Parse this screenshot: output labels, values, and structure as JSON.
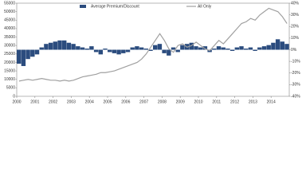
{
  "chart_data": {
    "type": "bar-line",
    "x": [
      2000,
      2000.25,
      2000.5,
      2000.75,
      2001,
      2001.25,
      2001.5,
      2001.75,
      2002,
      2002.25,
      2002.5,
      2002.75,
      2003,
      2003.25,
      2003.5,
      2003.75,
      2004,
      2004.25,
      2004.5,
      2004.75,
      2005,
      2005.25,
      2005.5,
      2005.75,
      2006,
      2006.25,
      2006.5,
      2006.75,
      2007,
      2007.25,
      2007.5,
      2007.75,
      2008,
      2008.25,
      2008.5,
      2008.75,
      2009,
      2009.25,
      2009.5,
      2009.75,
      2010,
      2010.25,
      2010.5,
      2010.75,
      2011,
      2011.25,
      2011.5,
      2011.75,
      2012,
      2012.25,
      2012.5,
      2012.75,
      2013,
      2013.25,
      2013.5,
      2013.75,
      2014,
      2014.25,
      2014.5,
      2014.75
    ],
    "xlim": [
      2000,
      2015
    ],
    "xticks": [
      2000,
      2001,
      2002,
      2003,
      2004,
      2005,
      2006,
      2007,
      2008,
      2009,
      2010,
      2011,
      2012,
      2013,
      2014
    ],
    "ylim": [
      0,
      55000
    ],
    "yticks": [
      0,
      5000,
      10000,
      15000,
      20000,
      25000,
      30000,
      35000,
      40000,
      45000,
      50000,
      55000
    ],
    "y2lim": [
      -40,
      40
    ],
    "y2ticks": [
      {
        "value": -40,
        "label": "-40%"
      },
      {
        "value": -30,
        "label": "-30%"
      },
      {
        "value": -20,
        "label": "-20%"
      },
      {
        "value": -10,
        "label": "-10%"
      },
      {
        "value": 0,
        "label": "0%"
      },
      {
        "value": 10,
        "label": "10%"
      },
      {
        "value": 20,
        "label": "20%"
      },
      {
        "value": 30,
        "label": "30%"
      },
      {
        "value": 40,
        "label": "40%"
      }
    ],
    "series": [
      {
        "name": "Average Premium/Discount",
        "kind": "bar",
        "axis": "y2",
        "color": "#2b4c7e",
        "values": [
          -12,
          -14,
          -8,
          -6,
          -4,
          2,
          5,
          6,
          7,
          8,
          8,
          6,
          5,
          3,
          2,
          1,
          3,
          -2,
          -4,
          1,
          -2,
          -3,
          -4,
          -3,
          -2,
          2,
          3,
          2,
          1,
          -1,
          4,
          5,
          -3,
          -5,
          2,
          -2,
          4,
          5,
          6,
          3,
          2,
          3,
          -2,
          1,
          3,
          2,
          1,
          -1,
          2,
          3,
          1,
          2,
          -1,
          2,
          3,
          4,
          6,
          9,
          7,
          5
        ]
      },
      {
        "name": "All Only",
        "kind": "line",
        "color": "#a0a0a0",
        "values": [
          9000,
          9500,
          10000,
          9500,
          10000,
          10500,
          10000,
          9500,
          9500,
          9000,
          9500,
          9000,
          9500,
          10500,
          11500,
          12000,
          12500,
          13000,
          14000,
          14000,
          14500,
          15000,
          16000,
          17000,
          18000,
          19000,
          20000,
          22000,
          25000,
          29000,
          33000,
          37000,
          33000,
          28000,
          26000,
          30000,
          31000,
          29000,
          30000,
          32000,
          30000,
          28000,
          27000,
          30000,
          33000,
          31000,
          34000,
          37000,
          40000,
          43000,
          44000,
          46000,
          45000,
          48000,
          50000,
          52000,
          51000,
          50000,
          47000,
          43000
        ]
      }
    ]
  }
}
